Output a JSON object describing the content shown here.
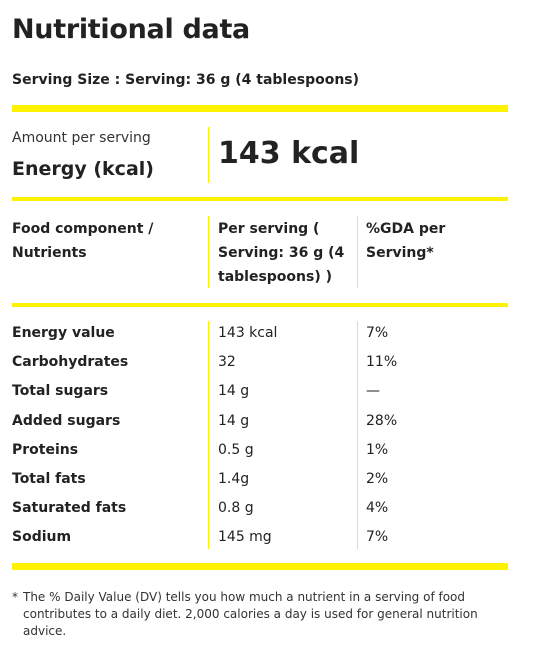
{
  "title": "Nutritional data",
  "serving_size": "Serving Size : Serving: 36 g (4 tablespoons)",
  "energy_block": {
    "amount_label": "Amount per serving",
    "energy_label": "Energy (kcal)",
    "energy_value": "143 kcal"
  },
  "table": {
    "headers": {
      "component_line1": "Food component /",
      "component_line2": "Nutrients",
      "per_serving_line1": "Per serving (",
      "per_serving_line2": "Serving: 36 g (4",
      "per_serving_line3": "tablespoons) )",
      "gda_line1": "%GDA per",
      "gda_line2": "Serving*"
    },
    "rows": [
      {
        "name": "Energy value",
        "value": "143 kcal",
        "gda": "7%"
      },
      {
        "name": "Carbohydrates",
        "value": "32",
        "gda": "11%"
      },
      {
        "name": "Total sugars",
        "value": "14 g",
        "gda": "—"
      },
      {
        "name": "Added sugars",
        "value": "14 g",
        "gda": "28%"
      },
      {
        "name": "Proteins",
        "value": "0.5 g",
        "gda": "1%"
      },
      {
        "name": "Total fats",
        "value": "1.4g",
        "gda": "2%"
      },
      {
        "name": "Saturated fats",
        "value": "0.8 g",
        "gda": "4%"
      },
      {
        "name": "Sodium",
        "value": "145 mg",
        "gda": "7%"
      }
    ]
  },
  "footnote": {
    "marker": "*",
    "text": "The % Daily Value (DV) tells you how much a nutrient in a serving of food contributes to a daily diet. 2,000 calories a day is used for general nutrition advice."
  },
  "colors": {
    "accent": "#fff200",
    "text": "#222222"
  }
}
